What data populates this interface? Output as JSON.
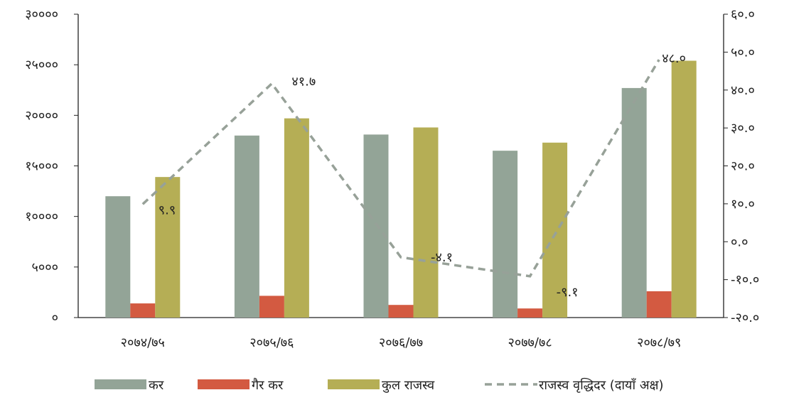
{
  "chart_data": {
    "type": "bar",
    "title": "",
    "categories": [
      "२०७४/७५",
      "२०७५/७६",
      "२०७६/७७",
      "२०७७/७८",
      "२०७८/७९"
    ],
    "series": [
      {
        "name": "कर",
        "kind": "bar",
        "axis": "left",
        "color": "#93a497",
        "values": [
          12000,
          18000,
          18100,
          16500,
          22700
        ]
      },
      {
        "name": "गैर कर",
        "kind": "bar",
        "axis": "left",
        "color": "#d35a41",
        "values": [
          1400,
          2150,
          1250,
          900,
          2600
        ]
      },
      {
        "name": "कुल राजस्व",
        "kind": "bar",
        "axis": "left",
        "color": "#b5ae55",
        "values": [
          13900,
          19700,
          18800,
          17300,
          25400
        ]
      },
      {
        "name": "राजस्व वृद्धिदर (दायाँ अक्ष)",
        "kind": "line",
        "axis": "right",
        "color": "#97a198",
        "dashed": true,
        "values": [
          9.9,
          41.7,
          -4.1,
          -9.1,
          48.0
        ],
        "labels": [
          "९.९",
          "४१.७",
          "-४.१",
          "-९.१",
          "४८.०"
        ]
      }
    ],
    "y_left": {
      "min": 0,
      "max": 30000,
      "ticks": [
        0,
        5000,
        10000,
        15000,
        20000,
        25000,
        30000
      ],
      "tick_labels": [
        "०",
        "५०००",
        "१००००",
        "१५०००",
        "२००००",
        "२५०००",
        "३००००"
      ]
    },
    "y_right": {
      "min": -20,
      "max": 60,
      "ticks": [
        -20,
        -10,
        0,
        10,
        20,
        30,
        40,
        50,
        60
      ],
      "tick_labels": [
        "-२०.०",
        "-१०.०",
        "०.०",
        "१०.०",
        "२०.०",
        "३०.०",
        "४०.०",
        "५०.०",
        "६०.०"
      ]
    },
    "grid": false,
    "legend_position": "bottom"
  }
}
